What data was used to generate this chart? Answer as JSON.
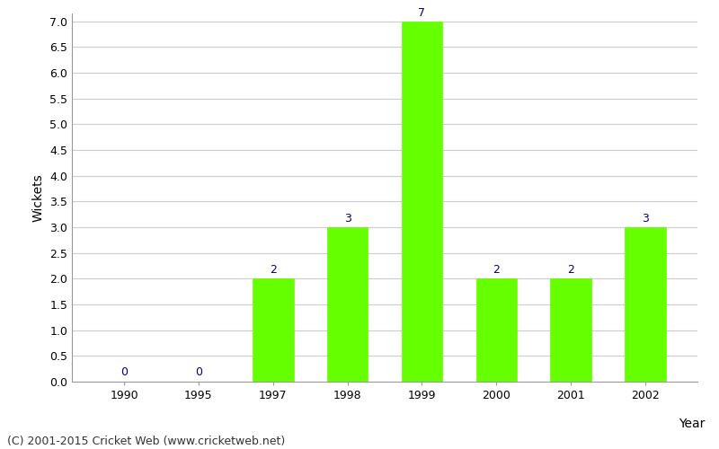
{
  "years": [
    1990,
    1995,
    1997,
    1998,
    1999,
    2000,
    2001,
    2002
  ],
  "wickets": [
    0,
    0,
    2,
    3,
    7,
    2,
    2,
    3
  ],
  "bar_color": "#66ff00",
  "bar_edge_color": "#66ff00",
  "xlabel": "Year",
  "ylabel": "Wickets",
  "ylim": [
    0,
    7.15
  ],
  "yticks": [
    0.0,
    0.5,
    1.0,
    1.5,
    2.0,
    2.5,
    3.0,
    3.5,
    4.0,
    4.5,
    5.0,
    5.5,
    6.0,
    6.5,
    7.0
  ],
  "label_color": "#000080",
  "label_fontsize": 9,
  "axis_label_fontsize": 10,
  "tick_fontsize": 9,
  "footer_text": "(C) 2001-2015 Cricket Web (www.cricketweb.net)",
  "footer_fontsize": 9,
  "background_color": "#ffffff",
  "grid_color": "#cccccc",
  "bar_width": 0.55
}
